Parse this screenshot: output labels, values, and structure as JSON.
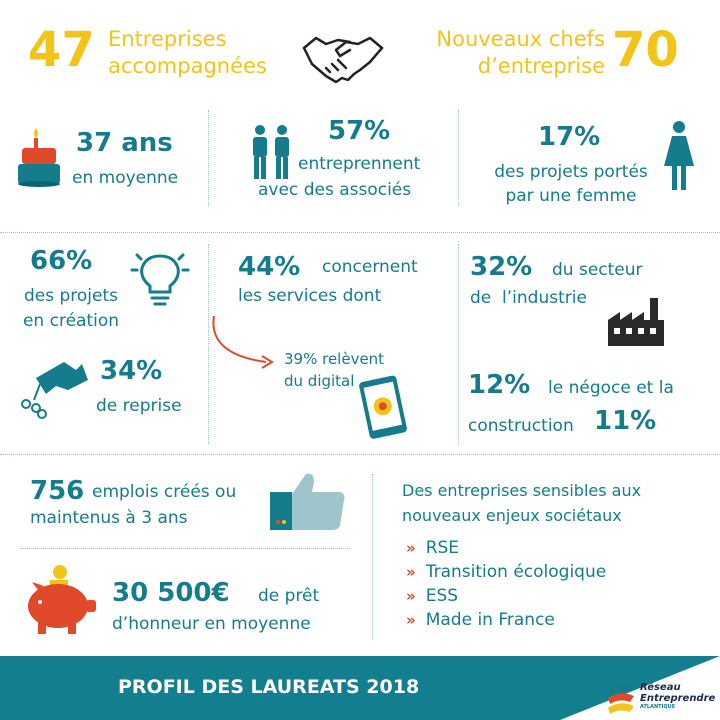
{
  "top": {
    "left_number": "47",
    "left_label_1": "Entreprises",
    "left_label_2": "accompagnées",
    "right_label_1": "Nouveaux chefs",
    "right_label_2": "d’entreprise",
    "right_number": "70"
  },
  "row1": {
    "age_value": "37 ans",
    "age_label": "en moyenne",
    "assoc_value": "57%",
    "assoc_label_1": "entreprennent",
    "assoc_label_2": "avec des associés",
    "women_value": "17%",
    "women_label_1": "des projets portés",
    "women_label_2": "par une femme"
  },
  "row2": {
    "creation_value": "66%",
    "creation_label_1": "des projets",
    "creation_label_2": "en création",
    "reprise_value": "34%",
    "reprise_label": "de reprise",
    "services_value": "44%",
    "services_label_1": "concernent",
    "services_label_2": "les services dont",
    "digital_label_1": "39% relèvent",
    "digital_label_2": "du digital",
    "industry_value": "32%",
    "industry_label_1": "du secteur",
    "industry_label_2": "de  l’industrie",
    "negoce_value": "12%",
    "negoce_label": "le négoce et la",
    "construction_label": "construction",
    "construction_value": "11%"
  },
  "row3": {
    "jobs_value": "756",
    "jobs_label_1": "emplois créés ou",
    "jobs_label_2": "maintenus à 3 ans",
    "loan_value": "30 500€",
    "loan_label_1": "de prêt",
    "loan_label_2": "d’honneur en moyenne",
    "sensitive_title_1": "Des entreprises sensibles aux",
    "sensitive_title_2": "nouveaux enjeux sociétaux",
    "items": [
      "RSE",
      "Transition écologique",
      "ESS",
      "Made in France"
    ],
    "chevron": "»"
  },
  "footer": {
    "title": "PROFIL DES LAUREATS 2018",
    "logo_line_1": "Réseau",
    "logo_line_2": "Entreprendre",
    "logo_line_3": "ATLANTIQUE"
  },
  "colors": {
    "teal": "#147c8c",
    "yellow": "#f2c417",
    "red": "#e04a2b",
    "footer": "#137f8e"
  }
}
